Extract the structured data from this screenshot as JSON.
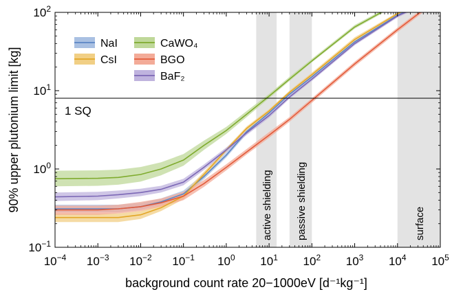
{
  "chart_data": {
    "type": "line",
    "xlabel": "background count rate 20−1000eV [d⁻¹kg⁻¹]",
    "ylabel": "90% upper plutonium limit [kg]",
    "xscale": "log",
    "yscale": "log",
    "xlim": [
      0.0001,
      100000
    ],
    "ylim": [
      0.1,
      100
    ],
    "x_ticks": [
      {
        "base": "10",
        "exp": "−4"
      },
      {
        "base": "10",
        "exp": "−3"
      },
      {
        "base": "10",
        "exp": "−2"
      },
      {
        "base": "10",
        "exp": "−1"
      },
      {
        "base": "10",
        "exp": "0"
      },
      {
        "base": "10",
        "exp": "1"
      },
      {
        "base": "10",
        "exp": "2"
      },
      {
        "base": "10",
        "exp": "3"
      },
      {
        "base": "10",
        "exp": "4"
      },
      {
        "base": "10",
        "exp": "5"
      }
    ],
    "y_ticks": [
      {
        "base": "10",
        "exp": "−1"
      },
      {
        "base": "10",
        "exp": "0"
      },
      {
        "base": "10",
        "exp": "1"
      },
      {
        "base": "10",
        "exp": "2"
      }
    ],
    "reference_line": {
      "y": 8,
      "label": "1 SQ"
    },
    "regions": [
      {
        "x0": 5,
        "x1": 15,
        "label": "active shielding"
      },
      {
        "x0": 30,
        "x1": 100,
        "label": "passive shielding"
      },
      {
        "x0": 10000,
        "x1": 100000,
        "label": "surface"
      }
    ],
    "legend_position": "top-left",
    "series": [
      {
        "name": "NaI",
        "color": "#5b84c4",
        "band_color": "#a9c0e2",
        "x": [
          0.0001,
          0.001,
          0.003,
          0.01,
          0.03,
          0.1,
          0.3,
          1,
          3,
          10,
          30,
          100,
          1000,
          10000,
          30000
        ],
        "y": [
          0.31,
          0.31,
          0.31,
          0.33,
          0.38,
          0.48,
          0.8,
          1.5,
          3.0,
          5.2,
          9.0,
          15,
          42,
          92,
          120
        ],
        "lo": [
          0.28,
          0.28,
          0.28,
          0.3,
          0.35,
          0.44,
          0.74,
          1.4,
          2.8,
          4.9,
          8.5,
          14,
          40,
          88,
          115
        ],
        "hi": [
          0.35,
          0.35,
          0.35,
          0.37,
          0.42,
          0.53,
          0.87,
          1.62,
          3.2,
          5.5,
          9.5,
          16,
          45,
          97,
          126
        ]
      },
      {
        "name": "CsI",
        "color": "#e3a626",
        "band_color": "#f1cf85",
        "x": [
          0.0001,
          0.001,
          0.003,
          0.01,
          0.03,
          0.1,
          0.3,
          1,
          3,
          10,
          30,
          100,
          1000,
          10000,
          30000
        ],
        "y": [
          0.24,
          0.24,
          0.24,
          0.26,
          0.32,
          0.45,
          0.85,
          1.75,
          3.3,
          5.5,
          9.5,
          16,
          45,
          96,
          125
        ],
        "lo": [
          0.21,
          0.21,
          0.21,
          0.23,
          0.29,
          0.41,
          0.79,
          1.65,
          3.1,
          5.2,
          9.0,
          15,
          42,
          92,
          120
        ],
        "hi": [
          0.27,
          0.27,
          0.27,
          0.29,
          0.35,
          0.49,
          0.92,
          1.85,
          3.5,
          5.8,
          10,
          17,
          48,
          100,
          130
        ]
      },
      {
        "name": "CaWO₄",
        "color": "#7fab2e",
        "band_color": "#bfd899",
        "x": [
          0.0001,
          0.001,
          0.003,
          0.01,
          0.03,
          0.1,
          0.3,
          1,
          3,
          10,
          30,
          100,
          1000,
          10000
        ],
        "y": [
          0.75,
          0.76,
          0.78,
          0.85,
          1.0,
          1.3,
          2.0,
          3.1,
          5.0,
          8.5,
          14,
          24,
          65,
          130
        ],
        "lo": [
          0.6,
          0.61,
          0.63,
          0.69,
          0.83,
          1.1,
          1.75,
          2.8,
          4.6,
          8.0,
          13.3,
          23,
          62,
          125
        ],
        "hi": [
          0.95,
          0.96,
          0.98,
          1.06,
          1.22,
          1.55,
          2.3,
          3.45,
          5.5,
          9.1,
          15,
          25.5,
          69,
          136
        ]
      },
      {
        "name": "BGO",
        "color": "#e35b3a",
        "band_color": "#f3ab98",
        "x": [
          0.0001,
          0.001,
          0.003,
          0.01,
          0.03,
          0.1,
          0.3,
          1,
          3,
          10,
          30,
          100,
          1000,
          10000,
          30000,
          60000
        ],
        "y": [
          0.3,
          0.3,
          0.31,
          0.33,
          0.37,
          0.45,
          0.65,
          1.05,
          1.65,
          2.7,
          4.3,
          7.5,
          22,
          60,
          95,
          125
        ],
        "lo": [
          0.26,
          0.26,
          0.27,
          0.29,
          0.33,
          0.4,
          0.59,
          0.96,
          1.53,
          2.5,
          4.0,
          7.0,
          20.5,
          56,
          89,
          118
        ],
        "hi": [
          0.34,
          0.34,
          0.35,
          0.38,
          0.42,
          0.51,
          0.72,
          1.15,
          1.8,
          2.95,
          4.6,
          8.0,
          23.5,
          64,
          101,
          132
        ]
      },
      {
        "name": "BaF₂",
        "color": "#7b67b5",
        "band_color": "#bfb3de",
        "x": [
          0.0001,
          0.001,
          0.003,
          0.01,
          0.03,
          0.1,
          0.3,
          1,
          3,
          10,
          30,
          100,
          1000,
          10000,
          30000
        ],
        "y": [
          0.44,
          0.45,
          0.47,
          0.5,
          0.55,
          0.68,
          1.05,
          1.75,
          2.9,
          4.8,
          8.3,
          14,
          40,
          90,
          118
        ],
        "lo": [
          0.39,
          0.4,
          0.42,
          0.45,
          0.5,
          0.62,
          0.97,
          1.63,
          2.72,
          4.5,
          7.9,
          13.3,
          38,
          86,
          113
        ],
        "hi": [
          0.5,
          0.51,
          0.53,
          0.56,
          0.61,
          0.75,
          1.14,
          1.88,
          3.1,
          5.1,
          8.8,
          14.8,
          42,
          94,
          124
        ]
      }
    ]
  }
}
